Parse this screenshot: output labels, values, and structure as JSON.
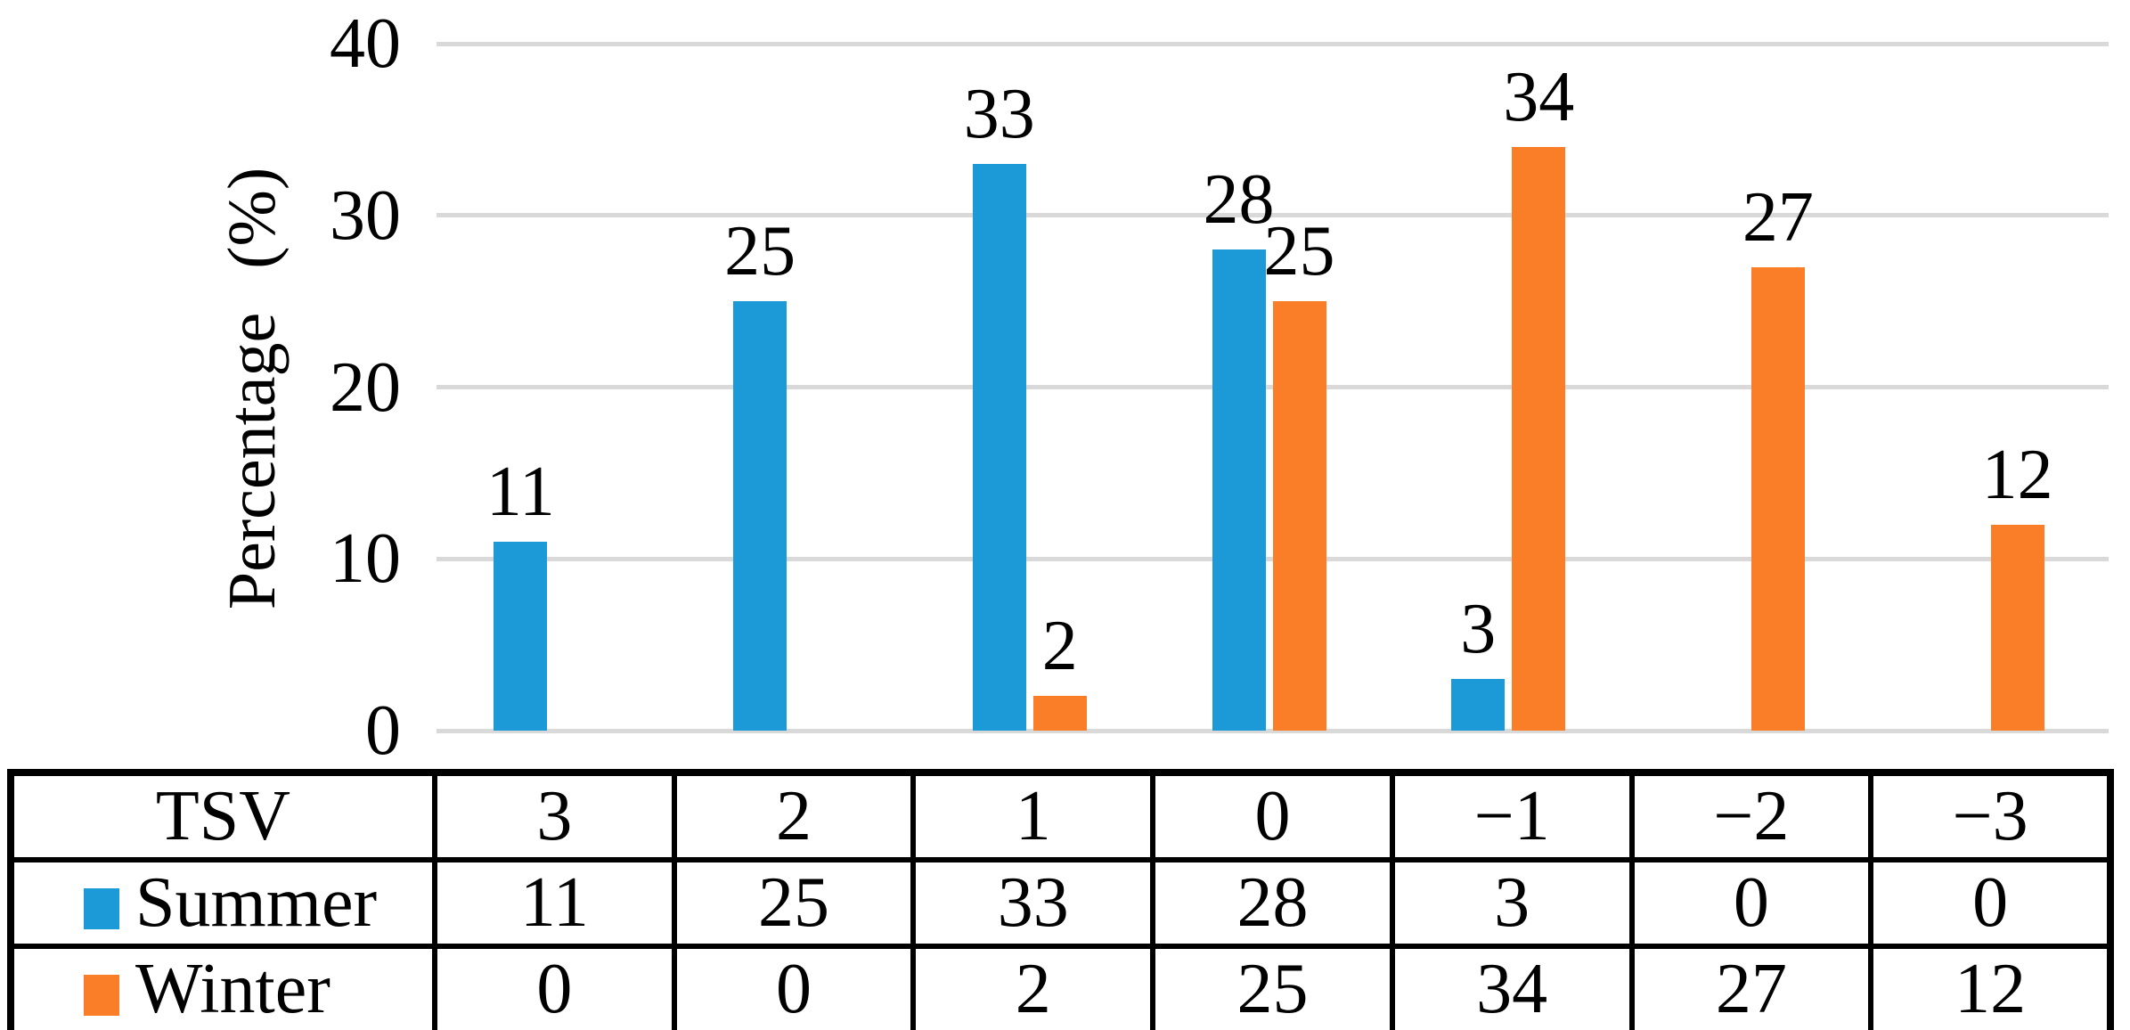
{
  "chart_data": {
    "type": "bar",
    "title": "",
    "ylabel": "Percentage (%)",
    "xlabel": "TSV",
    "ylim": [
      0,
      40
    ],
    "yticks": [
      0,
      10,
      20,
      30,
      40
    ],
    "grid": "horizontal",
    "gridline_color": "#D9D9D9",
    "categories": [
      "3",
      "2",
      "1",
      "0",
      "−1",
      "−2",
      "−3"
    ],
    "series": [
      {
        "name": "Summer",
        "color": "#1B9AD7",
        "values": [
          11,
          25,
          33,
          28,
          3,
          0,
          0
        ]
      },
      {
        "name": "Winter",
        "color": "#FA7D28",
        "values": [
          0,
          0,
          2,
          25,
          34,
          27,
          12
        ]
      }
    ],
    "data_labels": true,
    "zero_value_bars_hidden": true,
    "legend_position": "table-below"
  },
  "table": {
    "header_label": "TSV",
    "columns": [
      "3",
      "2",
      "1",
      "0",
      "−1",
      "−2",
      "−3"
    ],
    "rows": [
      {
        "label": "Summer",
        "swatch_color": "#1B9AD7",
        "values": [
          "11",
          "25",
          "33",
          "28",
          "3",
          "0",
          "0"
        ]
      },
      {
        "label": "Winter",
        "swatch_color": "#FA7D28",
        "values": [
          "0",
          "0",
          "2",
          "25",
          "34",
          "27",
          "12"
        ]
      }
    ]
  }
}
